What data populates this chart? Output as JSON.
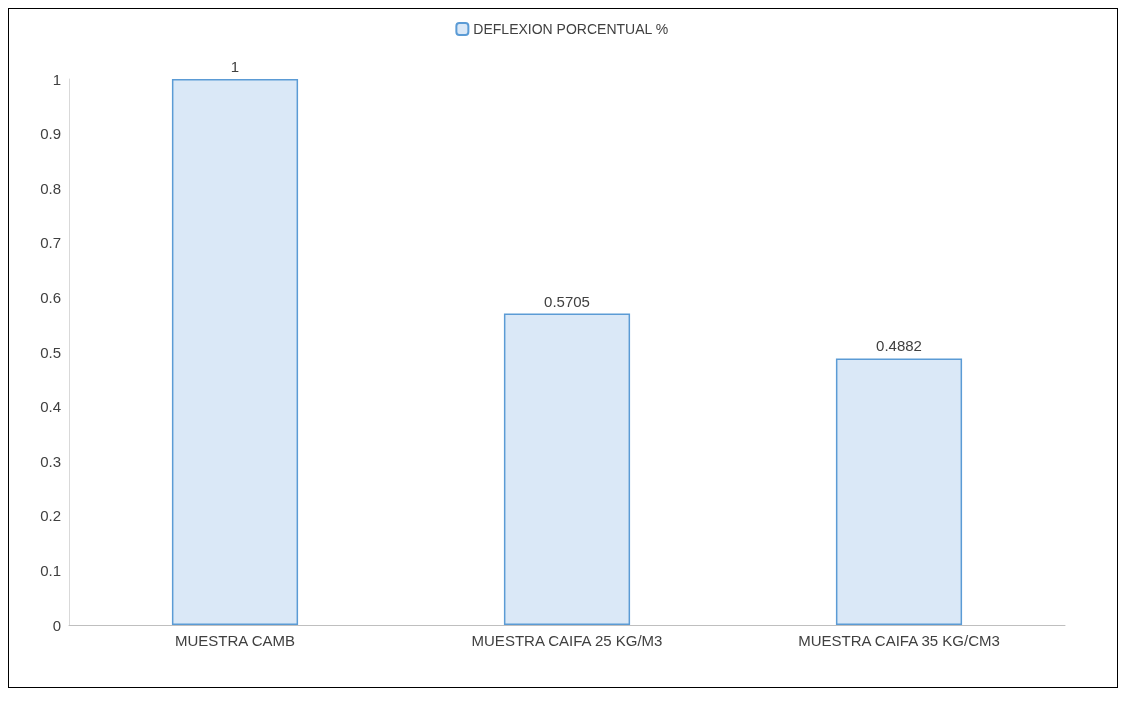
{
  "chart_data": {
    "type": "bar",
    "categories": [
      "MUESTRA CAMB",
      "MUESTRA CAIFA 25 KG/M3",
      "MUESTRA CAIFA 35 KG/CM3"
    ],
    "series": [
      {
        "name": "DEFLEXION PORCENTUAL %",
        "color": "#dae8f7",
        "values": [
          1,
          0.5705,
          0.4882
        ]
      }
    ],
    "ylim": [
      0,
      1
    ],
    "yticks": [
      0,
      0.1,
      0.2,
      0.3,
      0.4,
      0.5,
      0.6,
      0.7,
      0.8,
      0.9,
      1
    ],
    "data_labels": true,
    "legend": "top",
    "grid": false
  }
}
